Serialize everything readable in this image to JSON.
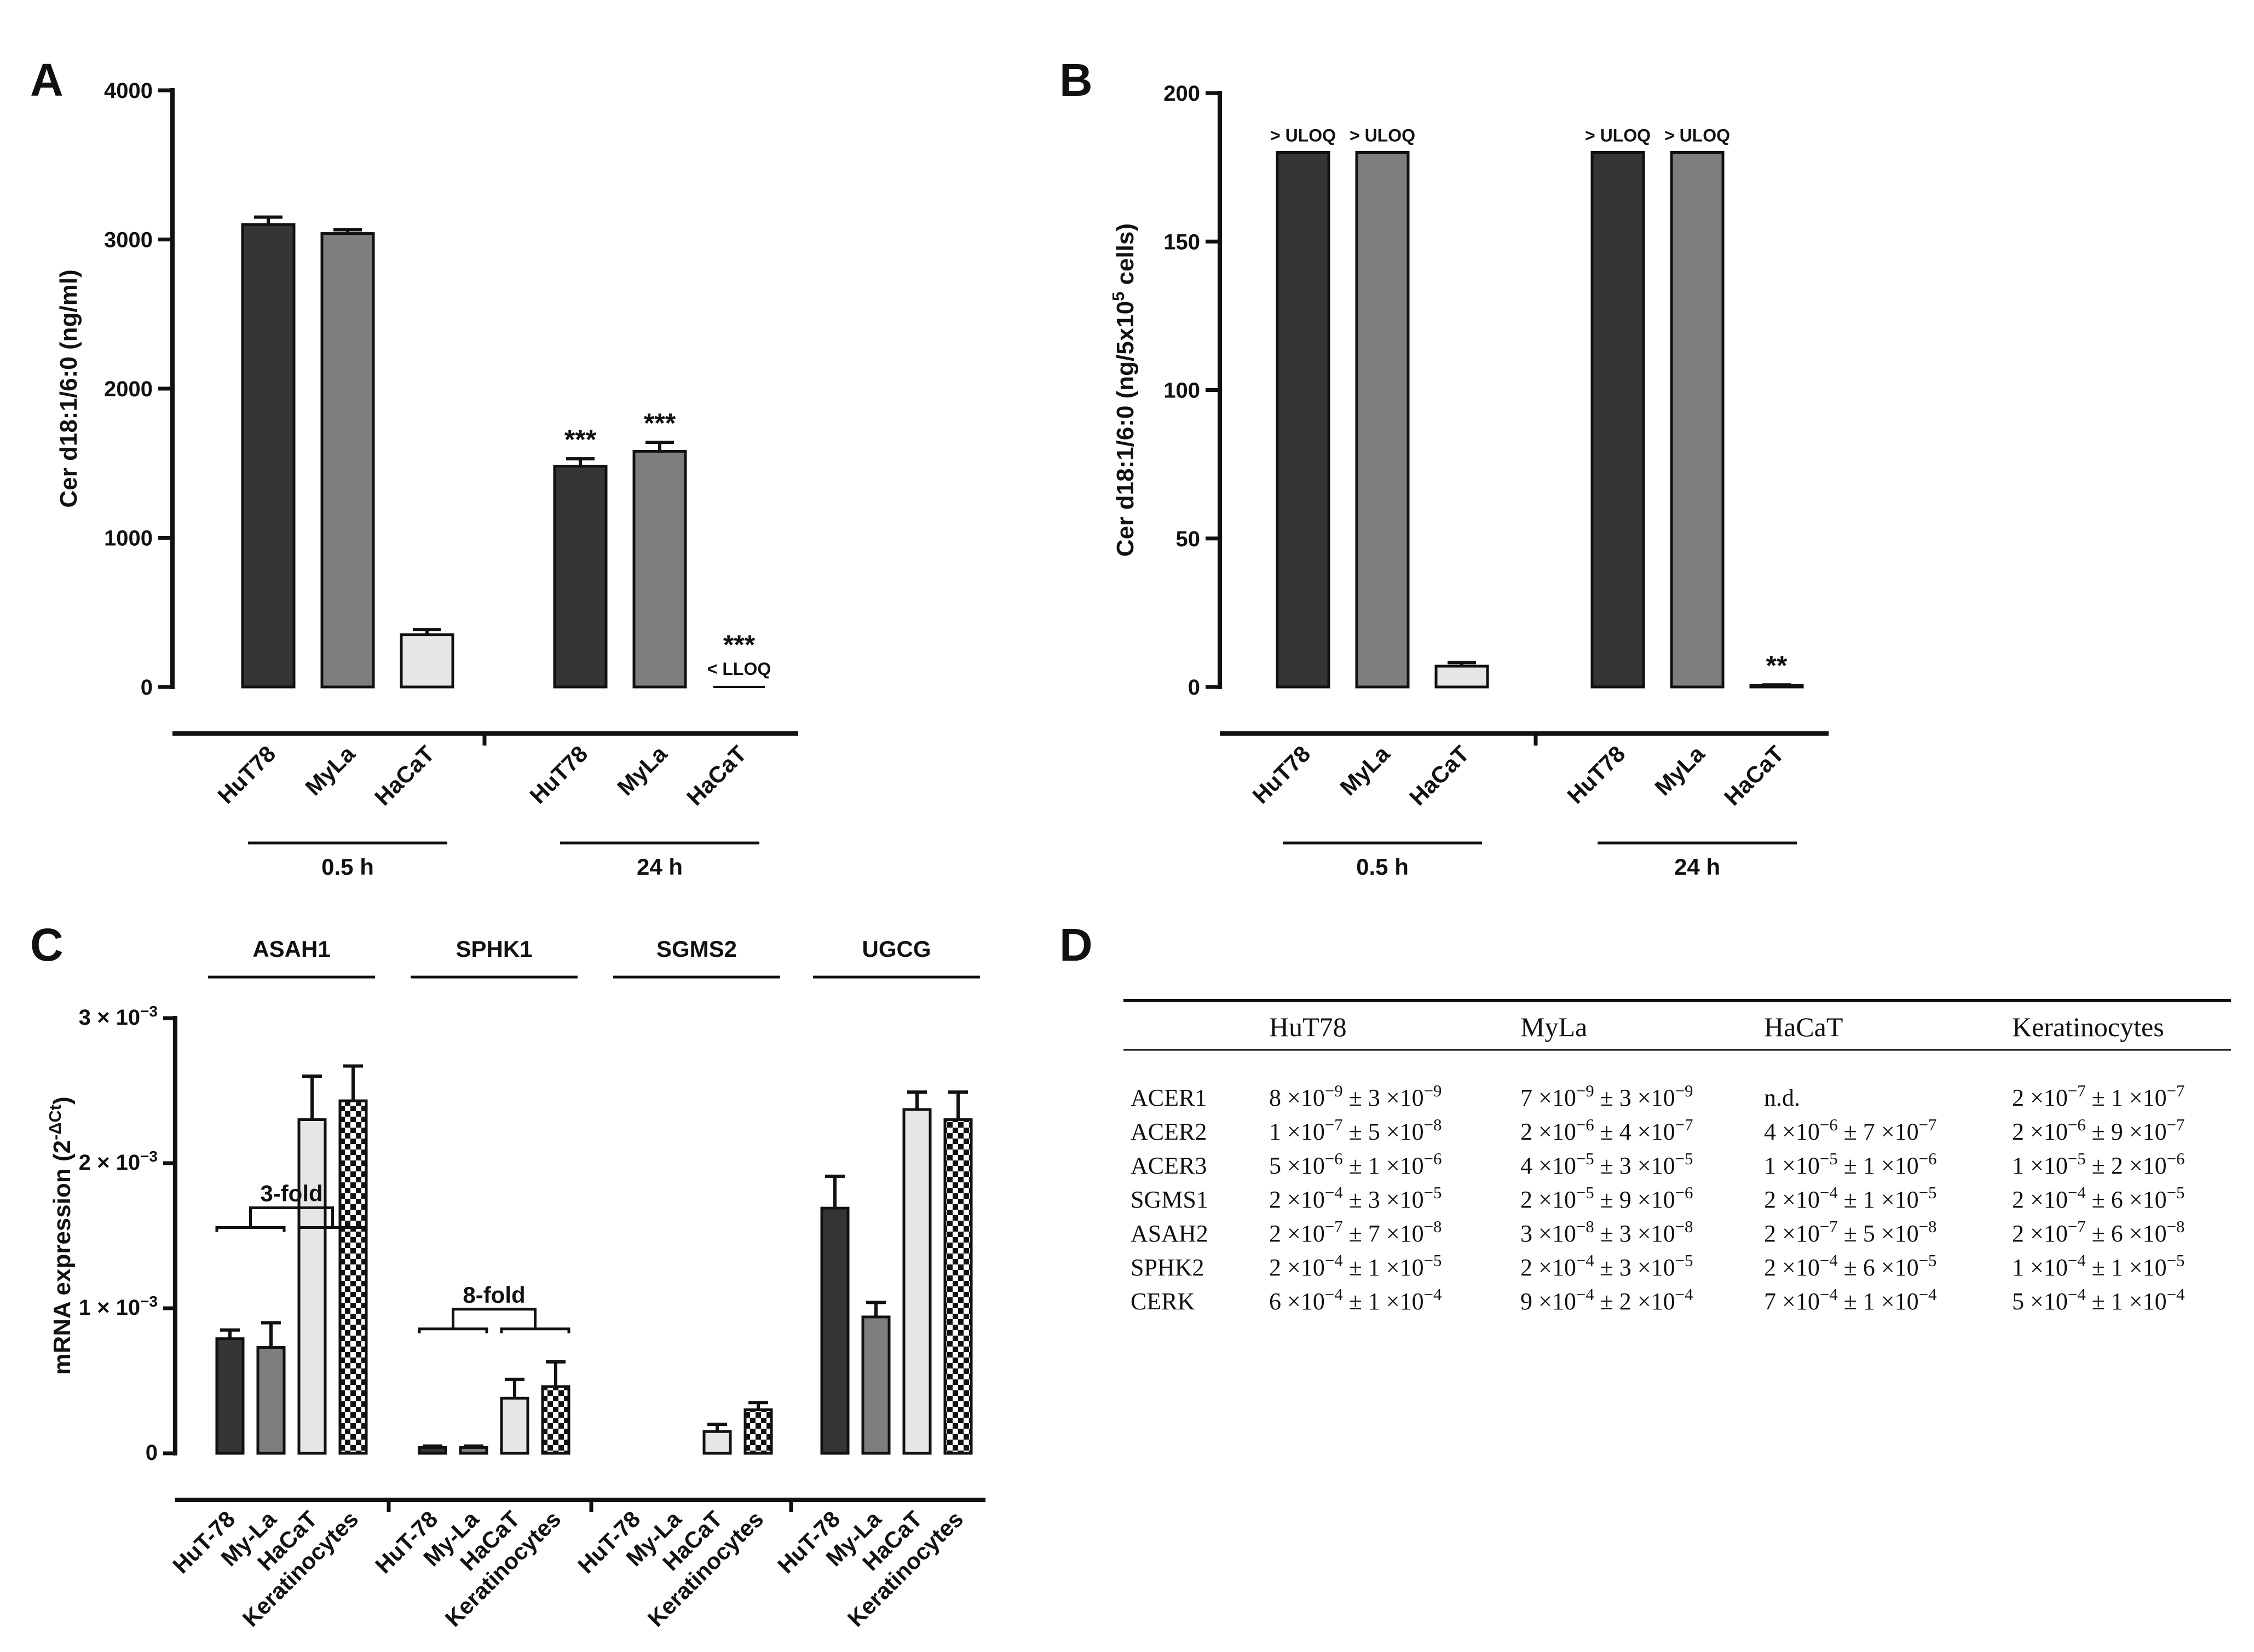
{
  "panels": {
    "A": "A",
    "B": "B",
    "C": "C",
    "D": "D"
  },
  "colors": {
    "HuT78": "#353535",
    "MyLa": "#7e7e7e",
    "HaCaT": "#e6e6e6",
    "Keratinocytes": "checker"
  },
  "chart_data": [
    {
      "id": "A",
      "type": "bar",
      "ylabel": "Cer d18:1/6:0 (ng/ml)",
      "ylim": [
        0,
        4000
      ],
      "yticks": [
        0,
        1000,
        2000,
        3000,
        4000
      ],
      "groups": [
        {
          "label": "0.5 h",
          "bars": [
            {
              "category": "HuT78",
              "value": 3100,
              "error": 50,
              "annotation": ""
            },
            {
              "category": "MyLa",
              "value": 3040,
              "error": 25,
              "annotation": ""
            },
            {
              "category": "HaCaT",
              "value": 350,
              "error": 35,
              "annotation": ""
            }
          ]
        },
        {
          "label": "24 h",
          "bars": [
            {
              "category": "HuT78",
              "value": 1480,
              "error": 50,
              "annotation": "***"
            },
            {
              "category": "MyLa",
              "value": 1580,
              "error": 60,
              "annotation": "***"
            },
            {
              "category": "HaCaT",
              "value": 0,
              "error": 0,
              "annotation": "***",
              "note": "< LLOQ"
            }
          ]
        }
      ]
    },
    {
      "id": "B",
      "type": "bar",
      "ylabel": "Cer d18:1/6:0 (ng/5x10",
      "ylabel_sup": "5",
      "ylabel_tail": " cells)",
      "ylim": [
        0,
        200
      ],
      "yticks": [
        0,
        50,
        100,
        150,
        200
      ],
      "groups": [
        {
          "label": "0.5 h",
          "bars": [
            {
              "category": "HuT78",
              "value": 180,
              "error": 0,
              "annotation": "> ULOQ"
            },
            {
              "category": "MyLa",
              "value": 180,
              "error": 0,
              "annotation": "> ULOQ"
            },
            {
              "category": "HaCaT",
              "value": 7,
              "error": 1.2,
              "annotation": ""
            }
          ]
        },
        {
          "label": "24 h",
          "bars": [
            {
              "category": "HuT78",
              "value": 180,
              "error": 0,
              "annotation": "> ULOQ"
            },
            {
              "category": "MyLa",
              "value": 180,
              "error": 0,
              "annotation": "> ULOQ"
            },
            {
              "category": "HaCaT",
              "value": 0.5,
              "error": 0.2,
              "annotation": "**"
            }
          ]
        }
      ]
    },
    {
      "id": "C",
      "type": "bar",
      "ylabel": "mRNA expression (2",
      "ylabel_sup": "-ΔCt",
      "ylabel_tail": ")",
      "ylim": [
        0,
        0.003
      ],
      "yticks": [
        {
          "value": 0,
          "label": "0"
        },
        {
          "value": 0.001,
          "label": "1 × 10",
          "sup": "−3"
        },
        {
          "value": 0.002,
          "label": "2 × 10",
          "sup": "−3"
        },
        {
          "value": 0.003,
          "label": "3 × 10",
          "sup": "−3"
        }
      ],
      "groups": [
        {
          "label": "ASAH1",
          "bracket": "3-fold",
          "bars": [
            {
              "category": "HuT-78",
              "value": 0.00079,
              "error": 6e-05
            },
            {
              "category": "My-La",
              "value": 0.00073,
              "error": 0.00017
            },
            {
              "category": "HaCaT",
              "value": 0.0023,
              "error": 0.0003
            },
            {
              "category": "Keratinocytes",
              "value": 0.00243,
              "error": 0.00024
            }
          ]
        },
        {
          "label": "SPHK1",
          "bracket": "8-fold",
          "bars": [
            {
              "category": "HuT-78",
              "value": 4e-05,
              "error": 1e-05
            },
            {
              "category": "My-La",
              "value": 4e-05,
              "error": 1e-05
            },
            {
              "category": "HaCaT",
              "value": 0.00038,
              "error": 0.00013
            },
            {
              "category": "Keratinocytes",
              "value": 0.00046,
              "error": 0.00017
            }
          ]
        },
        {
          "label": "SGMS2",
          "bracket": "",
          "bars": [
            {
              "category": "HuT-78",
              "value": 0,
              "error": 0
            },
            {
              "category": "My-La",
              "value": 0,
              "error": 0
            },
            {
              "category": "HaCaT",
              "value": 0.00015,
              "error": 5e-05
            },
            {
              "category": "Keratinocytes",
              "value": 0.0003,
              "error": 5e-05
            }
          ]
        },
        {
          "label": "UGCG",
          "bracket": "",
          "bars": [
            {
              "category": "HuT-78",
              "value": 0.00169,
              "error": 0.00022
            },
            {
              "category": "My-La",
              "value": 0.00094,
              "error": 0.0001
            },
            {
              "category": "HaCaT",
              "value": 0.00237,
              "error": 0.00012
            },
            {
              "category": "Keratinocytes",
              "value": 0.0023,
              "error": 0.00019
            }
          ]
        }
      ]
    },
    {
      "id": "D",
      "type": "table",
      "columns": [
        "",
        "HuT78",
        "MyLa",
        "HaCaT",
        "Keratinocytes"
      ],
      "rows": [
        {
          "gene": "ACER1",
          "cells": [
            [
              {
                "t": "8 ×10"
              },
              {
                "s": "−9"
              },
              {
                "t": " ± 3 ×10"
              },
              {
                "s": "−9"
              }
            ],
            [
              {
                "t": "7 ×10"
              },
              {
                "s": "−9"
              },
              {
                "t": " ± 3 ×10"
              },
              {
                "s": "−9"
              }
            ],
            [
              {
                "t": "n.d."
              }
            ],
            [
              {
                "t": "2 ×10"
              },
              {
                "s": "−7"
              },
              {
                "t": " ± 1 ×10"
              },
              {
                "s": "−7"
              }
            ]
          ]
        },
        {
          "gene": "ACER2",
          "cells": [
            [
              {
                "t": "1 ×10"
              },
              {
                "s": "−7"
              },
              {
                "t": " ± 5 ×10"
              },
              {
                "s": "−8"
              }
            ],
            [
              {
                "t": "2 ×10"
              },
              {
                "s": "−6"
              },
              {
                "t": " ± 4 ×10"
              },
              {
                "s": "−7"
              }
            ],
            [
              {
                "t": "4 ×10"
              },
              {
                "s": "−6"
              },
              {
                "t": " ± 7 ×10"
              },
              {
                "s": "−7"
              }
            ],
            [
              {
                "t": "2 ×10"
              },
              {
                "s": "−6"
              },
              {
                "t": " ± 9 ×10"
              },
              {
                "s": "−7"
              }
            ]
          ]
        },
        {
          "gene": "ACER3",
          "cells": [
            [
              {
                "t": "5 ×10"
              },
              {
                "s": "−6"
              },
              {
                "t": " ± 1 ×10"
              },
              {
                "s": "−6"
              }
            ],
            [
              {
                "t": "4 ×10"
              },
              {
                "s": "−5"
              },
              {
                "t": " ± 3 ×10"
              },
              {
                "s": "−5"
              }
            ],
            [
              {
                "t": "1 ×10"
              },
              {
                "s": "−5"
              },
              {
                "t": " ± 1 ×10"
              },
              {
                "s": "−6"
              }
            ],
            [
              {
                "t": "1 ×10"
              },
              {
                "s": "−5"
              },
              {
                "t": " ± 2 ×10"
              },
              {
                "s": "−6"
              }
            ]
          ]
        },
        {
          "gene": "SGMS1",
          "cells": [
            [
              {
                "t": "2 ×10"
              },
              {
                "s": "−4"
              },
              {
                "t": " ± 3 ×10"
              },
              {
                "s": "−5"
              }
            ],
            [
              {
                "t": "2 ×10"
              },
              {
                "s": "−5"
              },
              {
                "t": " ± 9 ×10"
              },
              {
                "s": "−6"
              }
            ],
            [
              {
                "t": "2 ×10"
              },
              {
                "s": "−4"
              },
              {
                "t": " ± 1 ×10"
              },
              {
                "s": "−5"
              }
            ],
            [
              {
                "t": "2 ×10"
              },
              {
                "s": "−4"
              },
              {
                "t": " ± 6 ×10"
              },
              {
                "s": "−5"
              }
            ]
          ]
        },
        {
          "gene": "ASAH2",
          "cells": [
            [
              {
                "t": "2 ×10"
              },
              {
                "s": "−7"
              },
              {
                "t": " ± 7 ×10"
              },
              {
                "s": "−8"
              }
            ],
            [
              {
                "t": "3 ×10"
              },
              {
                "s": "−8"
              },
              {
                "t": " ± 3 ×10"
              },
              {
                "s": "−8"
              }
            ],
            [
              {
                "t": "2 ×10"
              },
              {
                "s": "−7"
              },
              {
                "t": " ± 5 ×10"
              },
              {
                "s": "−8"
              }
            ],
            [
              {
                "t": "2 ×10"
              },
              {
                "s": "−7"
              },
              {
                "t": " ± 6 ×10"
              },
              {
                "s": "−8"
              }
            ]
          ]
        },
        {
          "gene": "SPHK2",
          "cells": [
            [
              {
                "t": "2 ×10"
              },
              {
                "s": "−4"
              },
              {
                "t": " ± 1 ×10"
              },
              {
                "s": "−5"
              }
            ],
            [
              {
                "t": "2 ×10"
              },
              {
                "s": "−4"
              },
              {
                "t": " ± 3 ×10"
              },
              {
                "s": "−5"
              }
            ],
            [
              {
                "t": "2 ×10"
              },
              {
                "s": "−4"
              },
              {
                "t": " ± 6 ×10"
              },
              {
                "s": "−5"
              }
            ],
            [
              {
                "t": "1 ×10"
              },
              {
                "s": "−4"
              },
              {
                "t": " ± 1 ×10"
              },
              {
                "s": "−5"
              }
            ]
          ]
        },
        {
          "gene": "CERK",
          "cells": [
            [
              {
                "t": "6 ×10"
              },
              {
                "s": "−4"
              },
              {
                "t": " ± 1 ×10"
              },
              {
                "s": "−4"
              }
            ],
            [
              {
                "t": "9 ×10"
              },
              {
                "s": "−4"
              },
              {
                "t": " ± 2 ×10"
              },
              {
                "s": "−4"
              }
            ],
            [
              {
                "t": "7 ×10"
              },
              {
                "s": "−4"
              },
              {
                "t": " ± 1 ×10"
              },
              {
                "s": "−4"
              }
            ],
            [
              {
                "t": "5 ×10"
              },
              {
                "s": "−4"
              },
              {
                "t": " ± 1 ×10"
              },
              {
                "s": "−4"
              }
            ]
          ]
        }
      ]
    }
  ]
}
